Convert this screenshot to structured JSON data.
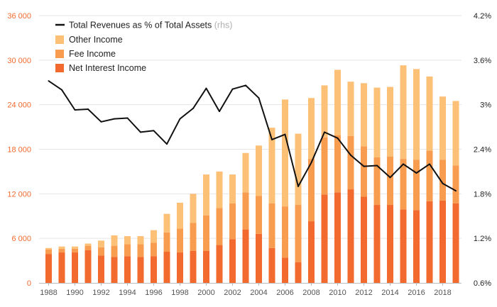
{
  "chart_data": {
    "type": "bar",
    "stacked": true,
    "years": [
      1988,
      1989,
      1990,
      1991,
      1992,
      1993,
      1994,
      1995,
      1996,
      1997,
      1998,
      1999,
      2000,
      2001,
      2002,
      2003,
      2004,
      2005,
      2006,
      2007,
      2008,
      2009,
      2010,
      2011,
      2012,
      2013,
      2014,
      2015,
      2016,
      2017,
      2018,
      2019
    ],
    "x_tick_labels": [
      "1988",
      "1990",
      "1992",
      "1994",
      "1996",
      "1998",
      "2000",
      "2002",
      "2004",
      "2006",
      "2008",
      "2010",
      "2012",
      "2014",
      "2016",
      "2018"
    ],
    "series": [
      {
        "name": "Net Interest Income",
        "color": "#f26a2e",
        "values": [
          3900,
          4100,
          4100,
          4400,
          3700,
          3500,
          3600,
          3500,
          3600,
          4200,
          4100,
          4300,
          4300,
          5100,
          5900,
          7200,
          6600,
          4700,
          3400,
          2800,
          8300,
          11900,
          12200,
          12600,
          11600,
          10500,
          10500,
          9900,
          9800,
          11000,
          11100,
          10700
        ]
      },
      {
        "name": "Fee Income",
        "color": "#f89c50",
        "values": [
          600,
          500,
          500,
          600,
          1100,
          1500,
          1600,
          1700,
          1800,
          2600,
          3200,
          3800,
          4800,
          5000,
          4800,
          5000,
          5100,
          6000,
          6900,
          7700,
          8400,
          7700,
          7700,
          7200,
          6800,
          6400,
          6500,
          6800,
          6800,
          6800,
          5500,
          5100
        ]
      },
      {
        "name": "Other Income",
        "color": "#fdc077",
        "values": [
          200,
          300,
          300,
          300,
          900,
          1400,
          1100,
          1100,
          1700,
          2500,
          3500,
          3900,
          5500,
          4900,
          3900,
          5300,
          6800,
          10200,
          14400,
          9600,
          8200,
          7000,
          8800,
          7300,
          8500,
          9400,
          9400,
          12600,
          12200,
          10000,
          8500,
          8700
        ]
      }
    ],
    "line": {
      "name": "Total Revenues as % of Total Assets",
      "axis": "rhs",
      "color": "#111111",
      "values": [
        3.32,
        3.2,
        2.93,
        2.94,
        2.77,
        2.81,
        2.82,
        2.63,
        2.65,
        2.47,
        2.81,
        2.95,
        3.22,
        2.91,
        3.21,
        3.26,
        3.09,
        2.53,
        2.6,
        1.9,
        2.22,
        2.63,
        2.55,
        2.32,
        2.17,
        2.18,
        2.02,
        2.2,
        2.08,
        2.2,
        1.94,
        1.84
      ]
    },
    "y_left": {
      "min": 0,
      "max": 36000,
      "ticks": [
        0,
        6000,
        12000,
        18000,
        24000,
        30000,
        36000
      ],
      "tick_labels": [
        "0",
        "6 000",
        "12 000",
        "18 000",
        "24 000",
        "30 000",
        "36 000"
      ],
      "label_color": "#f26a2e"
    },
    "y_right": {
      "min": 0.6,
      "max": 4.2,
      "ticks": [
        0.6,
        1.2,
        1.8,
        2.4,
        3.0,
        3.6,
        4.2
      ],
      "tick_labels": [
        "0.6%",
        "1.2%",
        "1.8%",
        "2.4%",
        "3%",
        "3.6%",
        "4.2%"
      ]
    },
    "legend": {
      "position": "top-left",
      "line_label": "Total Revenues as % of Total Assets",
      "line_suffix": "(rhs)",
      "items": [
        "Other Income",
        "Fee Income",
        "Net Interest Income"
      ]
    },
    "grid": true
  }
}
